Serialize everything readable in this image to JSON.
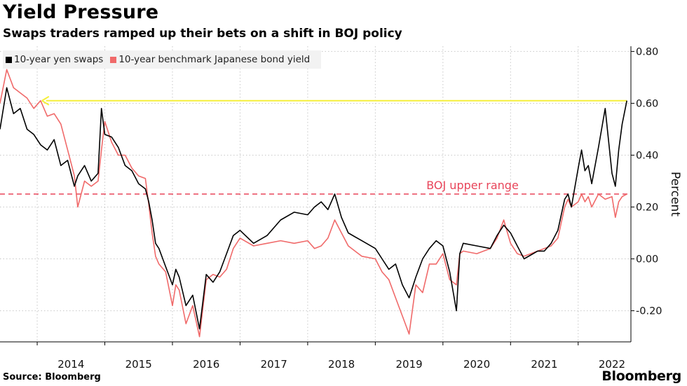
{
  "header": {
    "title": "Yield Pressure",
    "subtitle": "Swaps traders ramped up their bets on a shift in BOJ policy"
  },
  "footer": {
    "source": "Source: Bloomberg",
    "brand": "Bloomberg"
  },
  "colors": {
    "swaps": "#000000",
    "jgb": "#f06a6a",
    "boj_line": "#e8455a",
    "arrow": "#f5ef3a",
    "grid": "#c8c8c8"
  },
  "chart_data": {
    "type": "line",
    "ylabel": "Percent",
    "ylim": [
      -0.32,
      0.82
    ],
    "xlim": [
      2013.45,
      2022.78
    ],
    "yticks": [
      0.8,
      0.6,
      0.4,
      0.2,
      0.0,
      -0.2
    ],
    "ytick_labels": [
      "0.80",
      "0.60",
      "0.40",
      "0.20",
      "0.00",
      "-0.20"
    ],
    "xticks": [
      2014,
      2015,
      2016,
      2017,
      2018,
      2019,
      2020,
      2021,
      2022
    ],
    "xtick_labels": [
      "2014",
      "2015",
      "2016",
      "2017",
      "2018",
      "2019",
      "2020",
      "2021",
      "2022"
    ],
    "legend_position": "top-left",
    "annotations": [
      {
        "type": "hline",
        "y": 0.25,
        "label": "BOJ upper range",
        "style": "dashed"
      },
      {
        "type": "arrow",
        "y": 0.61,
        "from_x": 2022.72,
        "to_x": 2014.07
      }
    ],
    "series": [
      {
        "name": "10-year yen swaps",
        "x": [
          2013.45,
          2013.55,
          2013.65,
          2013.75,
          2013.85,
          2013.95,
          2014.05,
          2014.15,
          2014.25,
          2014.35,
          2014.45,
          2014.55,
          2014.6,
          2014.7,
          2014.8,
          2014.9,
          2014.95,
          2015.0,
          2015.1,
          2015.2,
          2015.3,
          2015.4,
          2015.5,
          2015.6,
          2015.65,
          2015.7,
          2015.75,
          2015.8,
          2015.9,
          2016.0,
          2016.05,
          2016.1,
          2016.2,
          2016.3,
          2016.4,
          2016.5,
          2016.6,
          2016.7,
          2016.8,
          2016.9,
          2017.0,
          2017.2,
          2017.4,
          2017.6,
          2017.8,
          2018.0,
          2018.1,
          2018.2,
          2018.3,
          2018.4,
          2018.5,
          2018.6,
          2018.8,
          2019.0,
          2019.1,
          2019.2,
          2019.3,
          2019.4,
          2019.5,
          2019.6,
          2019.7,
          2019.8,
          2019.9,
          2020.0,
          2020.1,
          2020.2,
          2020.25,
          2020.3,
          2020.5,
          2020.7,
          2020.8,
          2020.9,
          2021.0,
          2021.1,
          2021.2,
          2021.4,
          2021.5,
          2021.6,
          2021.7,
          2021.8,
          2021.85,
          2021.9,
          2022.0,
          2022.05,
          2022.1,
          2022.15,
          2022.2,
          2022.3,
          2022.4,
          2022.5,
          2022.55,
          2022.6,
          2022.65,
          2022.72
        ],
        "values": [
          0.5,
          0.66,
          0.56,
          0.58,
          0.5,
          0.48,
          0.44,
          0.42,
          0.46,
          0.36,
          0.38,
          0.28,
          0.32,
          0.36,
          0.3,
          0.33,
          0.58,
          0.48,
          0.47,
          0.43,
          0.36,
          0.34,
          0.29,
          0.27,
          0.22,
          0.15,
          0.06,
          0.04,
          -0.03,
          -0.1,
          -0.04,
          -0.07,
          -0.18,
          -0.14,
          -0.27,
          -0.06,
          -0.09,
          -0.05,
          0.02,
          0.09,
          0.11,
          0.06,
          0.09,
          0.15,
          0.18,
          0.17,
          0.2,
          0.22,
          0.19,
          0.25,
          0.16,
          0.1,
          0.07,
          0.04,
          0.0,
          -0.04,
          -0.02,
          -0.1,
          -0.15,
          -0.07,
          0.0,
          0.04,
          0.07,
          0.05,
          -0.05,
          -0.2,
          0.02,
          0.06,
          0.05,
          0.04,
          0.09,
          0.13,
          0.1,
          0.05,
          0.0,
          0.03,
          0.03,
          0.06,
          0.11,
          0.23,
          0.25,
          0.2,
          0.35,
          0.42,
          0.34,
          0.36,
          0.29,
          0.43,
          0.58,
          0.33,
          0.28,
          0.42,
          0.52,
          0.61
        ]
      },
      {
        "name": "10-year benchmark Japanese bond yield",
        "x": [
          2013.45,
          2013.55,
          2013.65,
          2013.75,
          2013.85,
          2013.95,
          2014.05,
          2014.15,
          2014.25,
          2014.35,
          2014.45,
          2014.55,
          2014.6,
          2014.7,
          2014.8,
          2014.9,
          2014.95,
          2015.0,
          2015.1,
          2015.2,
          2015.3,
          2015.4,
          2015.5,
          2015.6,
          2015.65,
          2015.7,
          2015.75,
          2015.8,
          2015.9,
          2016.0,
          2016.05,
          2016.1,
          2016.2,
          2016.3,
          2016.4,
          2016.5,
          2016.6,
          2016.7,
          2016.8,
          2016.9,
          2017.0,
          2017.2,
          2017.4,
          2017.6,
          2017.8,
          2018.0,
          2018.1,
          2018.2,
          2018.3,
          2018.4,
          2018.5,
          2018.6,
          2018.8,
          2019.0,
          2019.1,
          2019.2,
          2019.3,
          2019.4,
          2019.5,
          2019.6,
          2019.7,
          2019.8,
          2019.9,
          2020.0,
          2020.1,
          2020.2,
          2020.25,
          2020.3,
          2020.5,
          2020.7,
          2020.8,
          2020.9,
          2021.0,
          2021.1,
          2021.2,
          2021.4,
          2021.5,
          2021.6,
          2021.7,
          2021.8,
          2021.85,
          2021.9,
          2022.0,
          2022.05,
          2022.1,
          2022.15,
          2022.2,
          2022.3,
          2022.4,
          2022.5,
          2022.55,
          2022.6,
          2022.65,
          2022.72
        ],
        "values": [
          0.6,
          0.73,
          0.66,
          0.64,
          0.62,
          0.58,
          0.61,
          0.55,
          0.56,
          0.52,
          0.42,
          0.32,
          0.2,
          0.3,
          0.28,
          0.3,
          0.42,
          0.53,
          0.45,
          0.4,
          0.4,
          0.35,
          0.32,
          0.31,
          0.21,
          0.1,
          0.01,
          -0.02,
          -0.05,
          -0.18,
          -0.1,
          -0.12,
          -0.25,
          -0.18,
          -0.3,
          -0.08,
          -0.06,
          -0.07,
          -0.04,
          0.04,
          0.08,
          0.05,
          0.06,
          0.07,
          0.06,
          0.07,
          0.04,
          0.05,
          0.08,
          0.15,
          0.1,
          0.05,
          0.01,
          0.0,
          -0.05,
          -0.08,
          -0.15,
          -0.22,
          -0.29,
          -0.1,
          -0.13,
          -0.02,
          -0.02,
          0.02,
          -0.08,
          -0.1,
          0.02,
          0.03,
          0.02,
          0.04,
          0.08,
          0.15,
          0.06,
          0.02,
          0.01,
          0.03,
          0.04,
          0.05,
          0.08,
          0.2,
          0.23,
          0.2,
          0.22,
          0.25,
          0.22,
          0.24,
          0.2,
          0.25,
          0.23,
          0.24,
          0.16,
          0.22,
          0.24,
          0.25
        ]
      }
    ]
  }
}
